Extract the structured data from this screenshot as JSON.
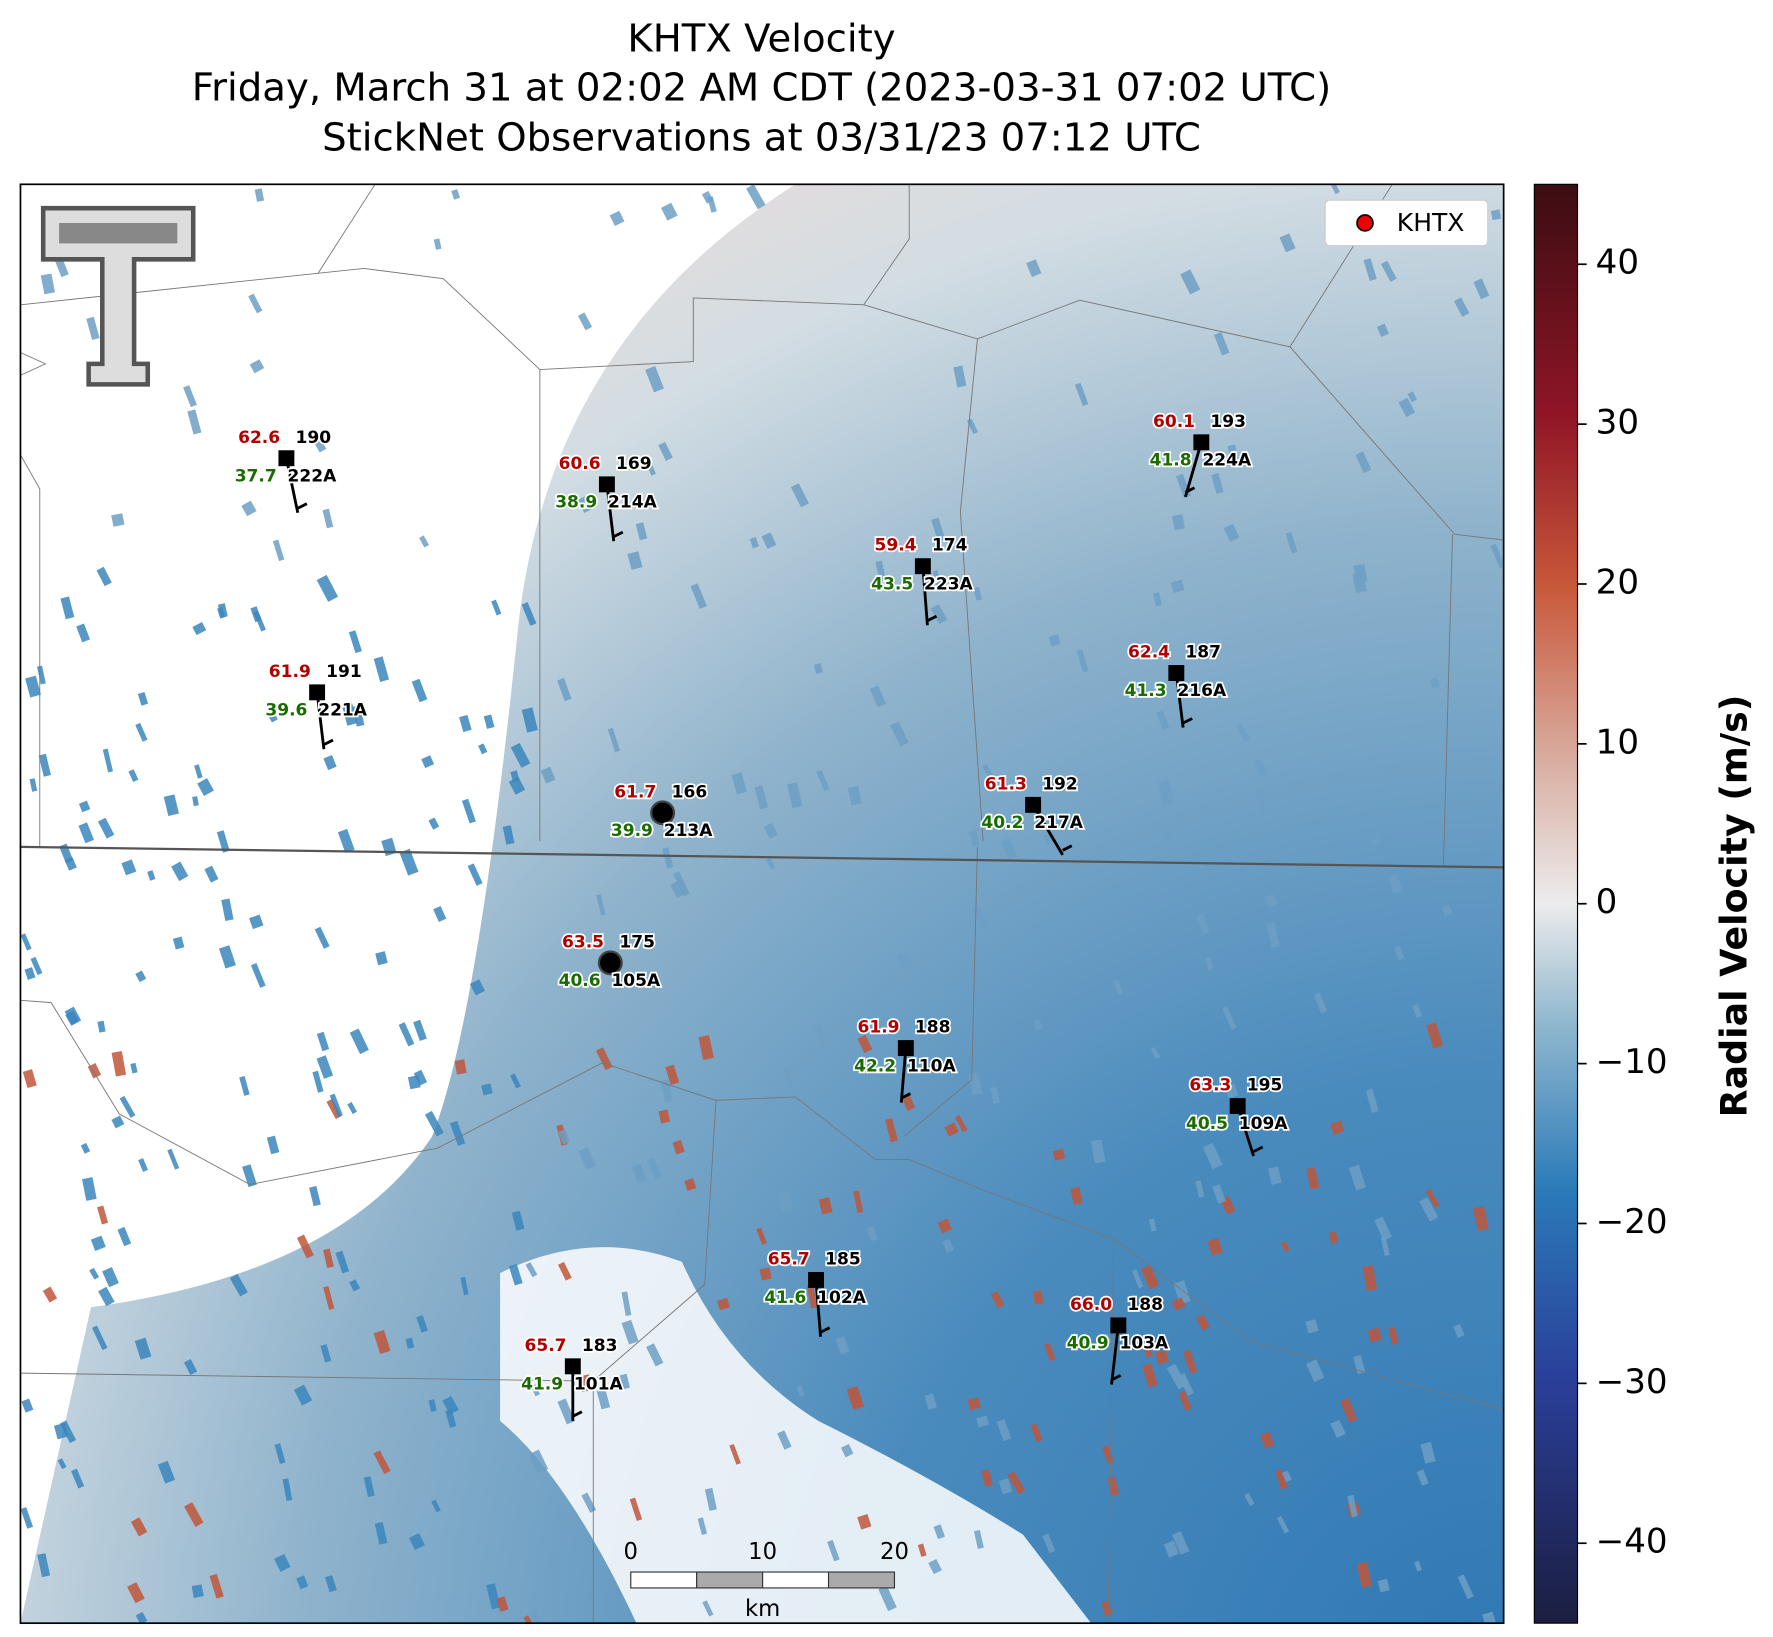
{
  "header": {
    "title": "KHTX Velocity",
    "subtitle": "Friday, March 31 at 02:02 AM CDT (2023-03-31 07:02 UTC)",
    "observations": "StickNet Observations at 03/31/23 07:12 UTC"
  },
  "legend": {
    "label": "KHTX"
  },
  "colorbar": {
    "label": "Radial Velocity (m/s)",
    "range": [
      -45,
      45
    ],
    "ticks": [
      {
        "value": -40,
        "label": "−40"
      },
      {
        "value": -30,
        "label": "−30"
      },
      {
        "value": -20,
        "label": "−20"
      },
      {
        "value": -10,
        "label": "−10"
      },
      0,
      10,
      20,
      30,
      40
    ]
  },
  "scale_bar": {
    "ticks": [
      "0",
      "10",
      "20"
    ],
    "unit": "km"
  },
  "stations": [
    {
      "temperature": "62.6",
      "dewpoint": "37.7",
      "code": "190",
      "id": "222A"
    },
    {
      "temperature": "60.6",
      "dewpoint": "38.9",
      "code": "169",
      "id": "214A"
    },
    {
      "temperature": "60.1",
      "dewpoint": "41.8",
      "code": "193",
      "id": "224A"
    },
    {
      "temperature": "59.4",
      "dewpoint": "43.5",
      "code": "174",
      "id": "223A"
    },
    {
      "temperature": "61.9",
      "dewpoint": "39.6",
      "code": "191",
      "id": "221A"
    },
    {
      "temperature": "62.4",
      "dewpoint": "41.3",
      "code": "187",
      "id": "216A"
    },
    {
      "temperature": "61.7",
      "dewpoint": "39.9",
      "code": "166",
      "id": "213A"
    },
    {
      "temperature": "61.3",
      "dewpoint": "40.2",
      "code": "192",
      "id": "217A"
    },
    {
      "temperature": "63.5",
      "dewpoint": "40.6",
      "code": "175",
      "id": "105A"
    },
    {
      "temperature": "61.9",
      "dewpoint": "42.2",
      "code": "188",
      "id": "110A"
    },
    {
      "temperature": "63.3",
      "dewpoint": "40.5",
      "code": "195",
      "id": "109A"
    },
    {
      "temperature": "65.7",
      "dewpoint": "41.6",
      "code": "185",
      "id": "102A"
    },
    {
      "temperature": "66.0",
      "dewpoint": "40.9",
      "code": "188",
      "id": "103A"
    },
    {
      "temperature": "65.7",
      "dewpoint": "41.9",
      "code": "183",
      "id": "101A"
    }
  ]
}
